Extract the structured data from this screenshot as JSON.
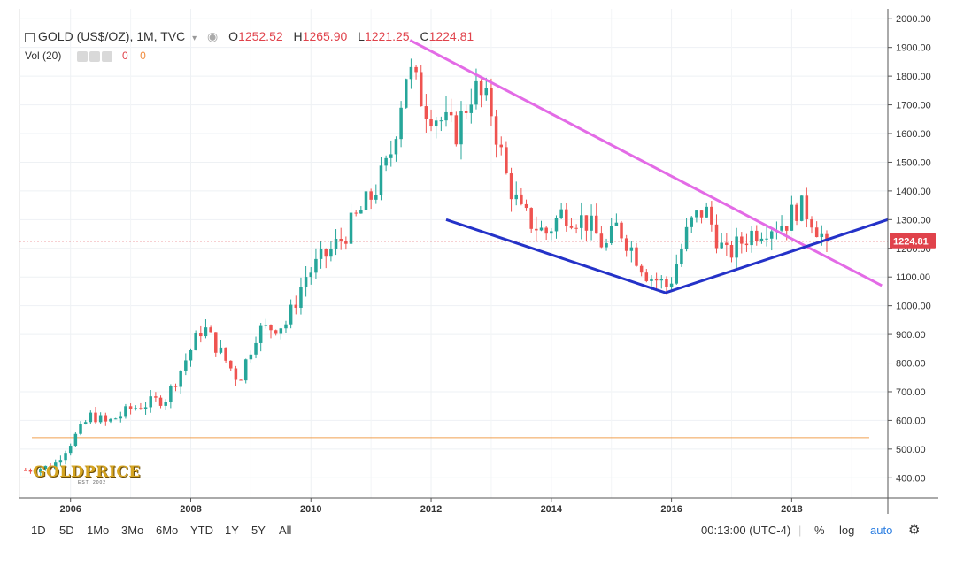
{
  "legend": {
    "symbol": "GOLD (US$/OZ), 1M, TVC",
    "open_label": "O",
    "open": "1252.52",
    "high_label": "H",
    "high": "1265.90",
    "low_label": "L",
    "low": "1221.25",
    "close_label": "C",
    "close": "1224.81",
    "vol_label": "Vol (20)",
    "vol_value_1": "0",
    "vol_value_2": "0"
  },
  "price_tag": "1224.81",
  "logo": {
    "name": "GOLDPRICE",
    "est": "EST. 2002"
  },
  "bottom": {
    "timeframes": [
      "1D",
      "5D",
      "1Mo",
      "3Mo",
      "6Mo",
      "YTD",
      "1Y",
      "5Y",
      "All"
    ],
    "clock": "00:13:00 (UTC-4)",
    "percent": "%",
    "log": "log",
    "auto": "auto"
  },
  "colors": {
    "up": "#26a69a",
    "down": "#ef5350",
    "downtrend": "#e36be6",
    "support": "#2432c8",
    "hline": "#f0a050",
    "lastprice": "#e0424b"
  },
  "chart_data": {
    "type": "candlestick",
    "title": "GOLD (US$/OZ), 1M, TVC",
    "y_ticks": [
      400,
      500,
      600,
      700,
      800,
      900,
      1000,
      1100,
      1200,
      1300,
      1400,
      1500,
      1600,
      1700,
      1800,
      1900,
      2000
    ],
    "ylim": [
      330,
      2010
    ],
    "x_ticks": [
      "2006",
      "2008",
      "2010",
      "2012",
      "2014",
      "2016",
      "2018"
    ],
    "xlim": [
      2005.15,
      2019.6
    ],
    "last_price": 1224.81,
    "horizontal_line": 540,
    "downtrend_line": {
      "from": [
        2011.65,
        1925
      ],
      "to": [
        2019.5,
        1070
      ]
    },
    "support_line": [
      [
        2012.25,
        1300
      ],
      [
        2015.9,
        1045
      ],
      [
        2019.6,
        1300
      ]
    ],
    "anchors": [
      [
        2005.2,
        425
      ],
      [
        2005.7,
        440
      ],
      [
        2006.35,
        620
      ],
      [
        2006.6,
        590
      ],
      [
        2007.0,
        640
      ],
      [
        2007.6,
        680
      ],
      [
        2008.2,
        930
      ],
      [
        2008.8,
        740
      ],
      [
        2009.1,
        910
      ],
      [
        2009.6,
        940
      ],
      [
        2009.9,
        1100
      ],
      [
        2010.5,
        1230
      ],
      [
        2011.0,
        1380
      ],
      [
        2011.3,
        1500
      ],
      [
        2011.6,
        1830
      ],
      [
        2011.9,
        1700
      ],
      [
        2012.4,
        1600
      ],
      [
        2012.7,
        1760
      ],
      [
        2013.0,
        1680
      ],
      [
        2013.25,
        1450
      ],
      [
        2013.5,
        1320
      ],
      [
        2013.9,
        1250
      ],
      [
        2014.2,
        1330
      ],
      [
        2014.6,
        1290
      ],
      [
        2014.9,
        1200
      ],
      [
        2015.1,
        1280
      ],
      [
        2015.6,
        1110
      ],
      [
        2015.95,
        1065
      ],
      [
        2016.3,
        1280
      ],
      [
        2016.55,
        1340
      ],
      [
        2016.9,
        1170
      ],
      [
        2017.3,
        1250
      ],
      [
        2017.6,
        1280
      ],
      [
        2017.9,
        1290
      ],
      [
        2018.1,
        1345
      ],
      [
        2018.3,
        1320
      ],
      [
        2018.55,
        1225
      ]
    ]
  }
}
